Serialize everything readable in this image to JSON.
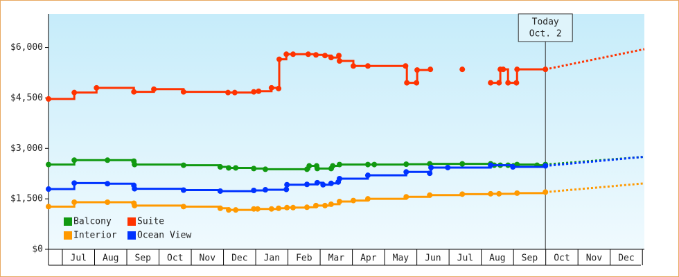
{
  "chart_data": {
    "type": "step",
    "xlim": [
      -0.43,
      18.06
    ],
    "xticks": [
      {
        "value": 0.5,
        "label": "Jul"
      },
      {
        "value": 1.5,
        "label": "Aug"
      },
      {
        "value": 2.5,
        "label": "Sep"
      },
      {
        "value": 3.5,
        "label": "Oct"
      },
      {
        "value": 4.5,
        "label": "Nov"
      },
      {
        "value": 5.5,
        "label": "Dec"
      },
      {
        "value": 6.5,
        "label": "Jan"
      },
      {
        "value": 7.5,
        "label": "Feb"
      },
      {
        "value": 8.5,
        "label": "Mar"
      },
      {
        "value": 9.5,
        "label": "Apr"
      },
      {
        "value": 10.5,
        "label": "May"
      },
      {
        "value": 11.5,
        "label": "Jun"
      },
      {
        "value": 12.5,
        "label": "Jul"
      },
      {
        "value": 13.5,
        "label": "Aug"
      },
      {
        "value": 14.5,
        "label": "Sep"
      },
      {
        "value": 15.5,
        "label": "Oct"
      },
      {
        "value": 16.5,
        "label": "Nov"
      },
      {
        "value": 17.5,
        "label": "Dec"
      }
    ],
    "ylim": [
      0,
      7000
    ],
    "yticks": [
      {
        "value": 0,
        "label": "$0"
      },
      {
        "value": 1500,
        "label": "$1,500"
      },
      {
        "value": 3000,
        "label": "$3,000"
      },
      {
        "value": 4500,
        "label": "$4,500"
      },
      {
        "value": 6000,
        "label": "$6,000"
      }
    ],
    "grid": false,
    "legend": "bottom-left",
    "annotation": {
      "x": 14.99,
      "lines": [
        "Today",
        "Oct. 2"
      ]
    },
    "series": [
      {
        "name": "Balcony",
        "color": "#119911",
        "x": [
          -0.43,
          0.37,
          1.4,
          2.22,
          2.24,
          3.76,
          4.9,
          5.16,
          5.38,
          5.94,
          6.3,
          7.59,
          7.66,
          7.89,
          7.91,
          8.34,
          8.39,
          8.6,
          9.48,
          9.68,
          10.67,
          11.4,
          12.41,
          13.29,
          13.4,
          13.59,
          13.83,
          14.0,
          14.11,
          14.73,
          14.99
        ],
        "values": [
          2520,
          2650,
          2650,
          2620,
          2520,
          2500,
          2450,
          2420,
          2420,
          2400,
          2380,
          2380,
          2480,
          2480,
          2400,
          2400,
          2480,
          2520,
          2520,
          2520,
          2530,
          2540,
          2540,
          2540,
          2500,
          2500,
          2500,
          2480,
          2520,
          2500,
          2520
        ],
        "projection": 2750
      },
      {
        "name": "Suite",
        "color": "#ff3300",
        "x": [
          -0.43,
          0.37,
          1.06,
          2.22,
          2.84,
          3.76,
          5.14,
          5.35,
          5.94,
          6.09,
          6.49,
          6.71,
          6.73,
          6.95,
          7.16,
          7.63,
          7.87,
          8.15,
          8.34,
          8.58,
          8.6,
          9.03,
          9.48,
          10.65,
          10.69,
          10.99,
          11.01,
          11.42,
          11.9,
          12.41,
          12.9,
          13.29,
          13.55,
          13.59,
          13.68,
          13.83,
          14.09,
          14.11,
          14.99
        ],
        "values": [
          4470,
          4660,
          4800,
          4680,
          4760,
          4680,
          4660,
          4660,
          4680,
          4700,
          4800,
          4780,
          5650,
          5800,
          5800,
          5800,
          5780,
          5760,
          5700,
          5760,
          5600,
          5450,
          5450,
          5450,
          4950,
          4950,
          5330,
          5350,
          null,
          5350,
          null,
          4950,
          4950,
          5350,
          5350,
          4950,
          4950,
          5350,
          5350
        ],
        "projection": 5950
      },
      {
        "name": "Interior",
        "color": "#ff9900",
        "x": [
          -0.43,
          0.37,
          1.4,
          2.22,
          2.24,
          3.76,
          4.9,
          5.16,
          5.38,
          5.94,
          6.06,
          6.49,
          6.71,
          6.97,
          7.16,
          7.59,
          7.87,
          8.15,
          8.34,
          8.6,
          9.03,
          9.48,
          10.67,
          11.4,
          12.41,
          13.29,
          13.55,
          14.11,
          14.99
        ],
        "values": [
          1270,
          1400,
          1400,
          1370,
          1300,
          1270,
          1220,
          1170,
          1170,
          1200,
          1200,
          1200,
          1220,
          1240,
          1240,
          1250,
          1300,
          1300,
          1340,
          1420,
          1450,
          1500,
          1560,
          1610,
          1640,
          1650,
          1650,
          1670,
          1700
        ],
        "projection": 1960
      },
      {
        "name": "Ocean View",
        "color": "#0033ff",
        "x": [
          -0.43,
          0.37,
          1.4,
          2.22,
          2.24,
          3.76,
          4.9,
          5.94,
          6.3,
          6.95,
          6.97,
          7.59,
          7.91,
          8.09,
          8.34,
          8.56,
          8.6,
          9.48,
          10.67,
          11.4,
          11.44,
          11.96,
          13.29,
          13.98,
          14.99
        ],
        "values": [
          1790,
          1970,
          1950,
          1900,
          1800,
          1760,
          1730,
          1750,
          1770,
          1780,
          1920,
          1930,
          1980,
          1920,
          1960,
          2000,
          2100,
          2200,
          2300,
          2260,
          2430,
          2430,
          2500,
          2450,
          2480
        ],
        "projection": 2750
      }
    ]
  }
}
